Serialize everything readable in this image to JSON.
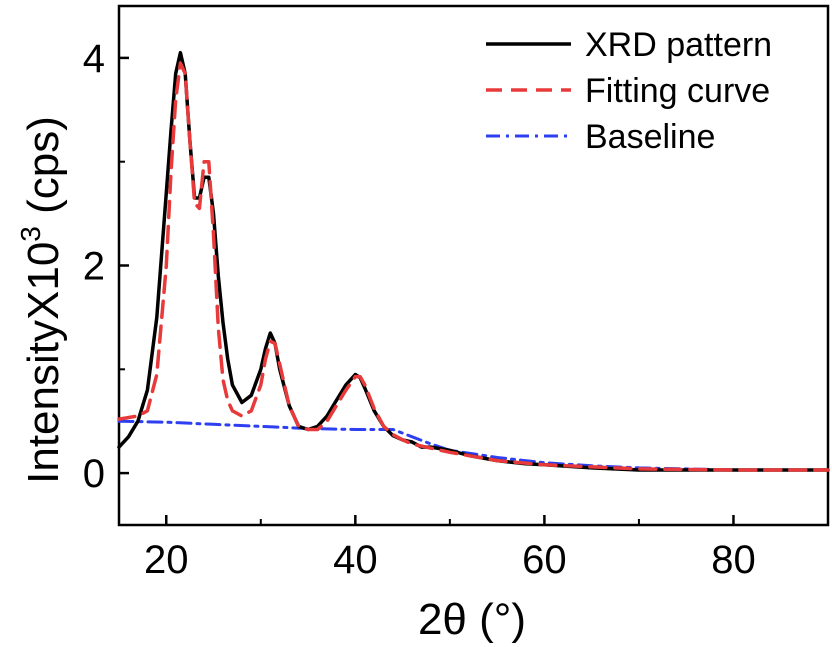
{
  "chart_data": {
    "type": "line",
    "title": "",
    "xlabel": "2θ (°)",
    "ylabel": {
      "prefix": "IntensityX10",
      "superscript": "3",
      "suffix": " (cps)"
    },
    "xlim": [
      15,
      90
    ],
    "ylim": [
      -0.5,
      4.5
    ],
    "xticks": [
      20,
      40,
      60,
      80
    ],
    "yticks": [
      0,
      2,
      4
    ],
    "grid": false,
    "legend_position": "top-right",
    "series": [
      {
        "name": "XRD pattern",
        "style": "solid",
        "color": "#000000",
        "x": [
          15,
          16,
          17,
          18,
          19,
          20,
          20.5,
          21,
          21.5,
          22,
          22.5,
          23,
          23.5,
          24,
          24.5,
          25,
          25.5,
          26,
          26.5,
          27,
          28,
          29,
          30,
          30.5,
          31,
          31.5,
          32,
          33,
          34,
          35,
          36,
          37,
          38,
          39,
          40,
          40.5,
          41,
          42,
          43,
          44,
          45,
          46,
          47,
          48,
          50,
          52,
          55,
          58,
          60,
          65,
          70,
          75,
          80,
          85,
          90
        ],
        "y": [
          0.25,
          0.35,
          0.5,
          0.8,
          1.5,
          2.7,
          3.3,
          3.85,
          4.05,
          3.85,
          3.2,
          2.65,
          2.65,
          2.85,
          2.85,
          2.5,
          1.9,
          1.45,
          1.1,
          0.85,
          0.68,
          0.75,
          1.0,
          1.2,
          1.35,
          1.25,
          1.0,
          0.65,
          0.45,
          0.42,
          0.45,
          0.55,
          0.7,
          0.85,
          0.95,
          0.92,
          0.82,
          0.6,
          0.45,
          0.36,
          0.32,
          0.3,
          0.25,
          0.25,
          0.22,
          0.17,
          0.12,
          0.09,
          0.08,
          0.05,
          0.03,
          0.03,
          0.03,
          0.03,
          0.03
        ]
      },
      {
        "name": "Fitting curve",
        "style": "dashed",
        "color": "#e83a3a",
        "x": [
          15,
          17,
          18,
          19,
          20,
          20.5,
          21,
          21.5,
          22,
          22.5,
          23,
          23.5,
          24,
          24.5,
          25,
          25.5,
          26,
          26.5,
          27,
          28,
          29,
          30,
          30.5,
          31,
          31.5,
          32,
          33,
          34,
          35,
          36,
          37,
          38,
          39,
          40,
          40.5,
          41,
          42,
          43,
          44,
          45,
          46,
          48,
          50,
          55,
          60,
          70,
          80,
          90
        ],
        "y": [
          0.52,
          0.55,
          0.6,
          0.95,
          2.0,
          2.9,
          3.6,
          3.95,
          3.85,
          3.2,
          2.6,
          2.55,
          3.0,
          3.0,
          2.3,
          1.4,
          0.9,
          0.7,
          0.6,
          0.55,
          0.6,
          0.85,
          1.1,
          1.27,
          1.25,
          1.05,
          0.65,
          0.45,
          0.42,
          0.42,
          0.5,
          0.65,
          0.8,
          0.93,
          0.93,
          0.85,
          0.62,
          0.45,
          0.37,
          0.32,
          0.28,
          0.24,
          0.2,
          0.12,
          0.08,
          0.04,
          0.03,
          0.03
        ]
      },
      {
        "name": "Baseline",
        "style": "dashdot",
        "color": "#2d3ff0",
        "x": [
          15,
          20,
          25,
          30,
          35,
          40,
          44,
          46,
          48,
          50,
          55,
          60,
          65,
          70,
          80,
          90
        ],
        "y": [
          0.5,
          0.49,
          0.47,
          0.45,
          0.43,
          0.42,
          0.42,
          0.35,
          0.28,
          0.22,
          0.15,
          0.1,
          0.07,
          0.05,
          0.03,
          0.03
        ]
      }
    ]
  }
}
